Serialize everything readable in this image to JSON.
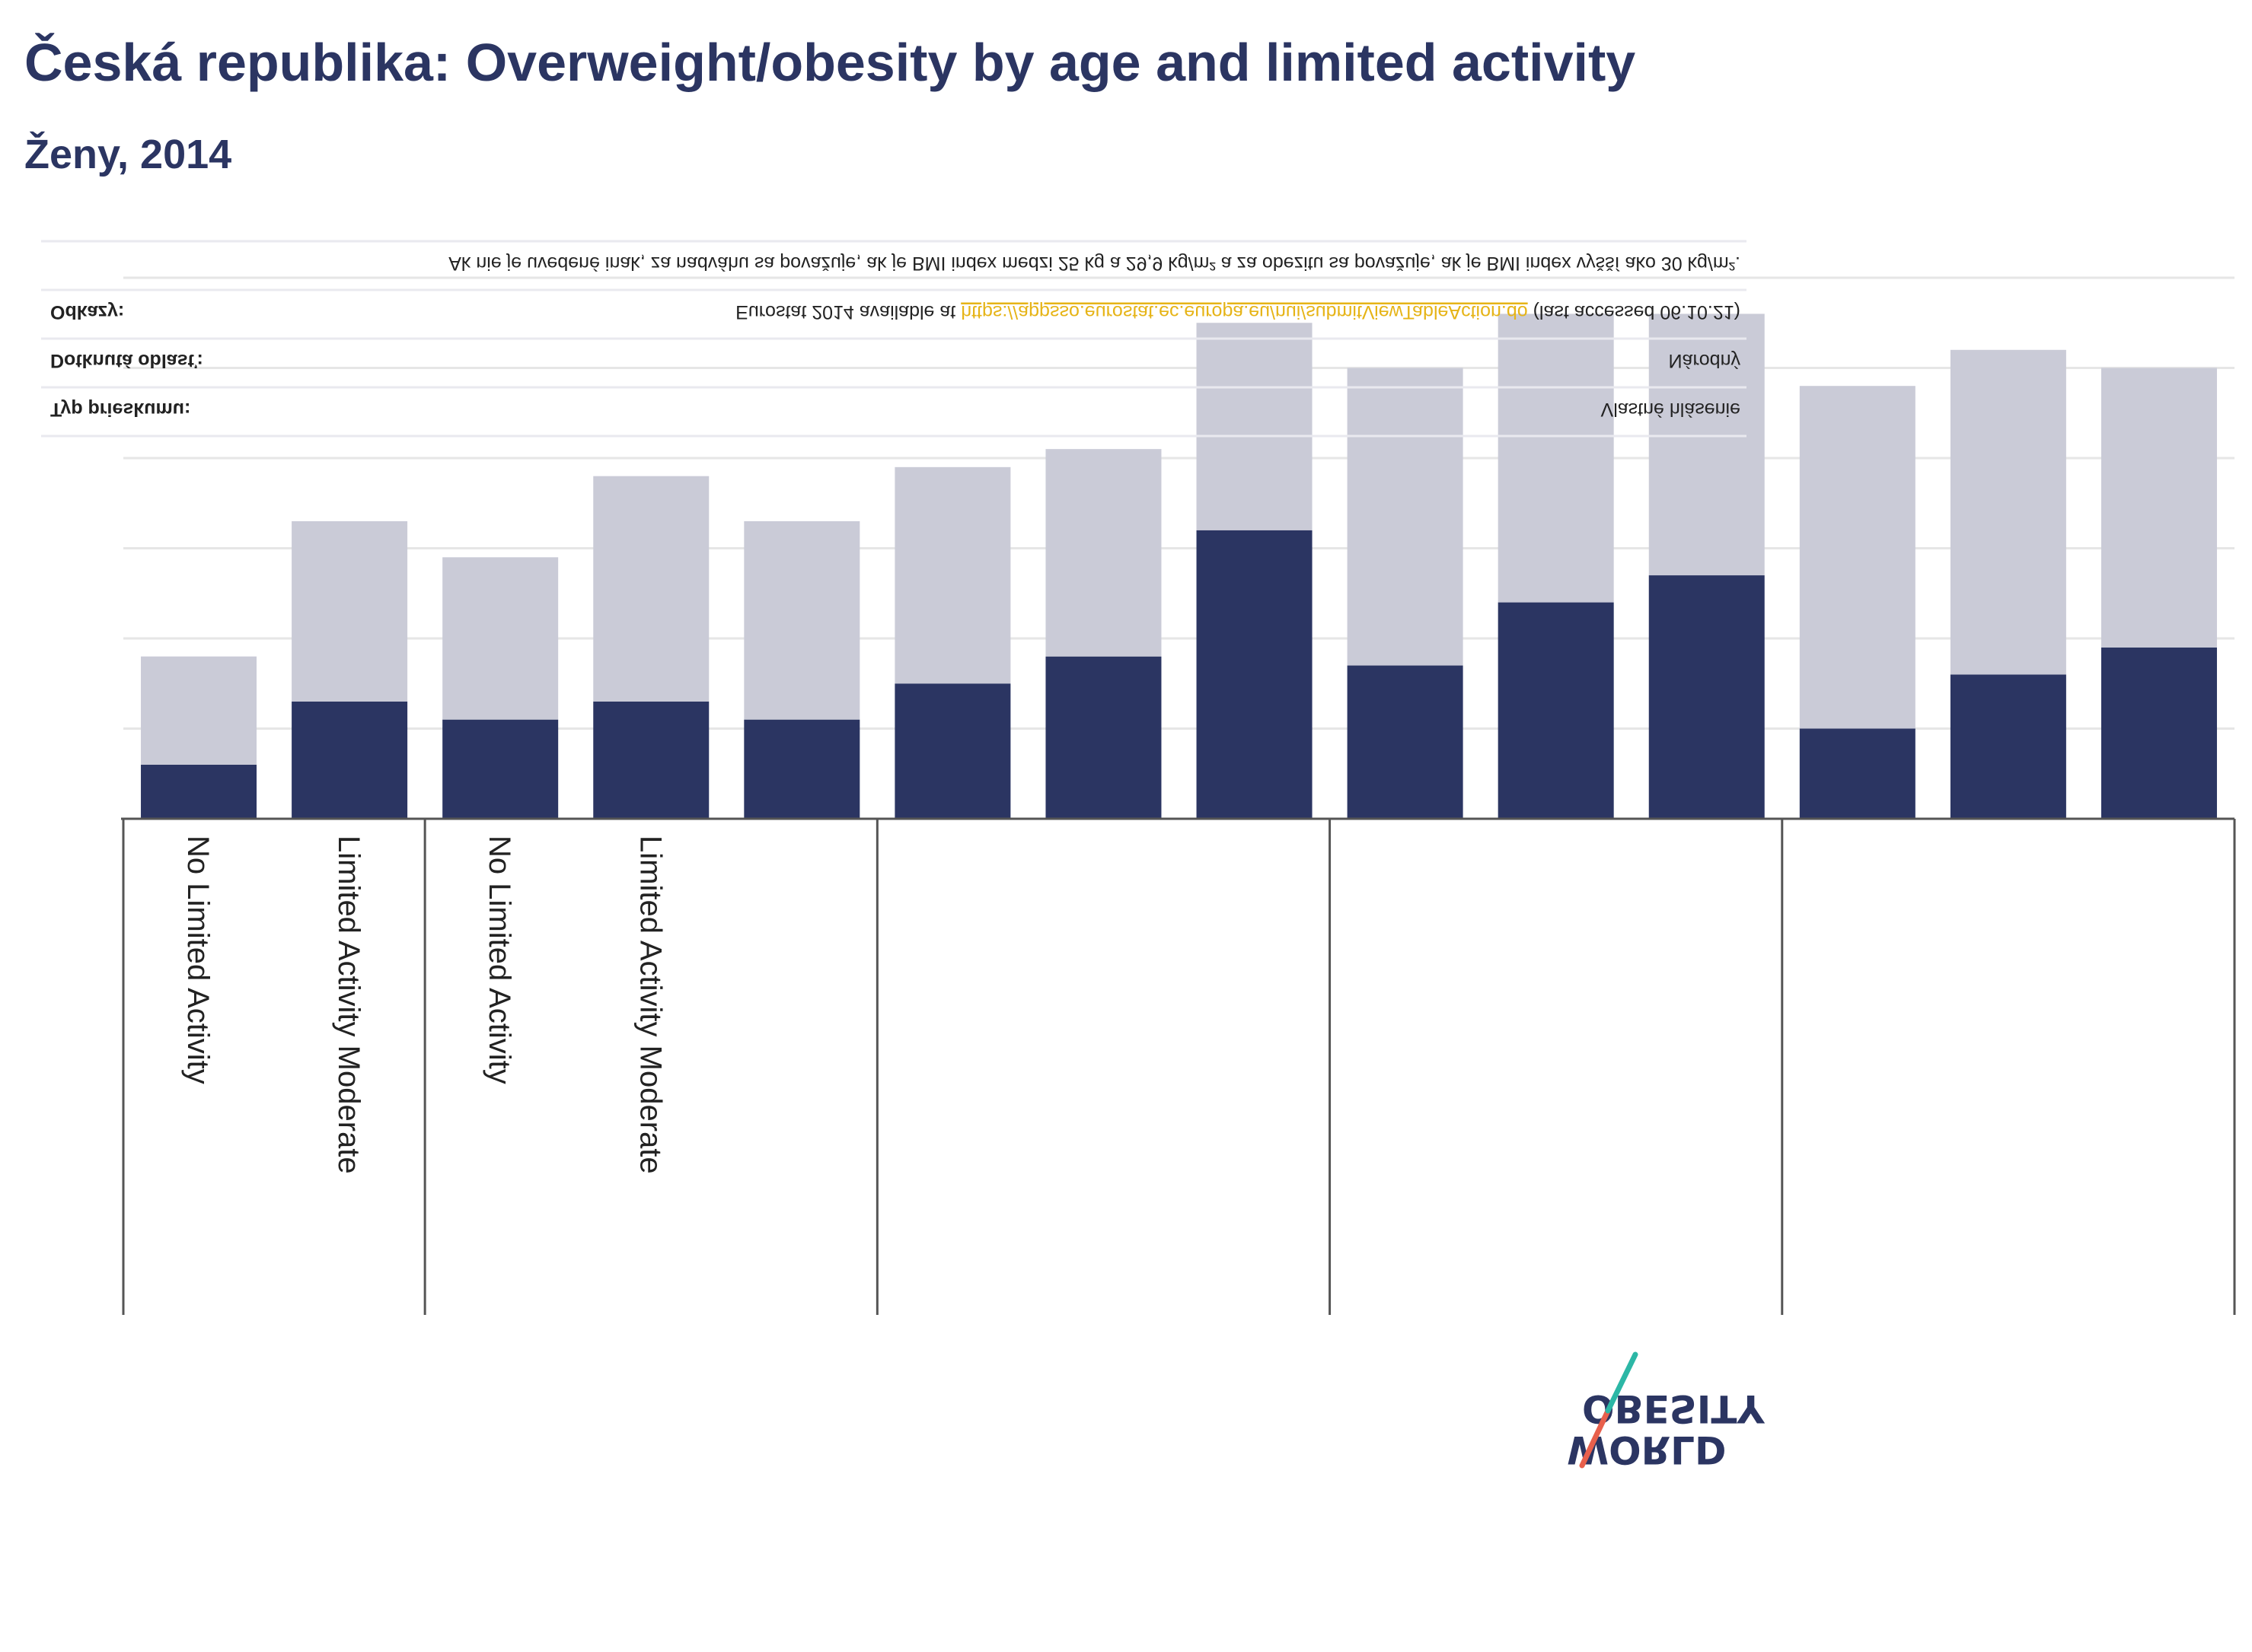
{
  "title": "Česká republika: Overweight/obesity by age and limited activity",
  "subtitle": "Ženy, 2014",
  "notes": {
    "definition": "Ak nie je uvedené inak, za nadváhu sa považuje, ak je BMI index medzi 25 kg a 29,9 kg/m² a za obezitu sa považuje, ak je BMI index vyšší ako 30 kg/m².",
    "references_label": "Odkazy:",
    "references_prefix": "Eurostat 2014 available at",
    "references_link": "https://appsso.eurostat.ec.europa.eu/nui/submitViewTableAction.do",
    "references_suffix": "(last accessed 06.10.21)",
    "area_label": "Dotknutá oblasť:",
    "area_value": "Národný",
    "survey_label": "Typ prieskumu:",
    "survey_value": "Vlastné hlásenie"
  },
  "logo": {
    "line1": "OBESITY",
    "line2": "WORLD"
  },
  "colors": {
    "obesity": "#2b3562",
    "overweight": "#cacbd7",
    "text": "#2b3562",
    "link": "#e6b417"
  },
  "chart_data": {
    "type": "bar",
    "stacked": true,
    "categories": [
      "No Limited Activity",
      "Limited Activity Moderate",
      "No Limited Activity",
      "Limited Activity Moderate",
      "",
      "",
      "",
      "",
      "",
      "",
      "",
      "",
      "",
      ""
    ],
    "series": [
      {
        "values": [
          6,
          13,
          11,
          13,
          11,
          15,
          18,
          32,
          17,
          24,
          27,
          10,
          16,
          19
        ]
      },
      {
        "values": [
          12,
          20,
          18,
          25,
          22,
          24,
          23,
          23,
          33,
          32,
          29,
          38,
          36,
          31
        ]
      }
    ],
    "ylim": [
      0,
      60
    ],
    "grid": true,
    "group_dividers_after": [
      1,
      4,
      7,
      10
    ]
  }
}
